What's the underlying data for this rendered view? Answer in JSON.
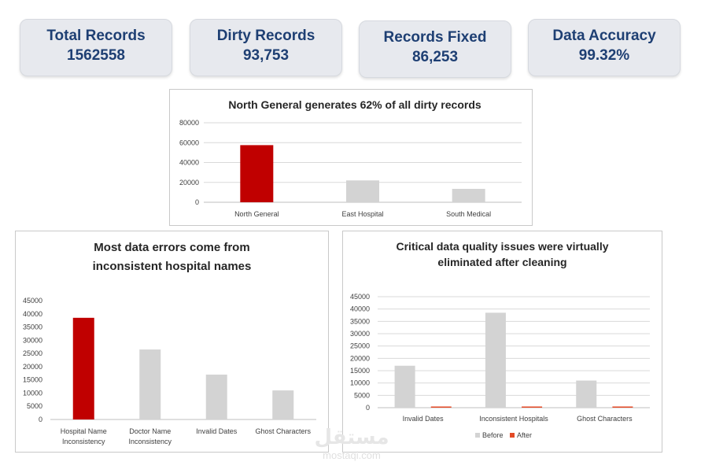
{
  "kpis": [
    {
      "title": "Total Records",
      "value": "1562558"
    },
    {
      "title": "Dirty Records",
      "value": "93,753"
    },
    {
      "title": "Records Fixed",
      "value": "86,253"
    },
    {
      "title": "Data Accuracy",
      "value": "99.32%"
    }
  ],
  "colors": {
    "highlight": "#c00000",
    "neutral": "#d3d3d3",
    "kpi_text": "#1e3f73",
    "gridline": "#d9d9d9"
  },
  "watermark": {
    "arabic": "مستقل",
    "latin": "mostaqi.com"
  },
  "chart_data": [
    {
      "type": "bar",
      "title": "North General generates 62% of all dirty records",
      "categories": [
        "North General",
        "East Hospital",
        "South Medical"
      ],
      "values": [
        57500,
        22000,
        13500
      ],
      "highlight_index": 0,
      "ylim": [
        0,
        80000
      ],
      "yticks": [
        0,
        20000,
        40000,
        60000,
        80000
      ],
      "grid": true,
      "legend": "none"
    },
    {
      "type": "bar",
      "title_lines": [
        "Most data errors come from",
        "inconsistent hospital names"
      ],
      "categories": [
        [
          "Hospital Name",
          "Inconsistency"
        ],
        [
          "Doctor Name",
          "Inconsistency"
        ],
        [
          "Invalid Dates"
        ],
        [
          "Ghost Characters"
        ]
      ],
      "values": [
        38500,
        26500,
        17000,
        11000
      ],
      "highlight_index": 0,
      "ylim": [
        0,
        45000
      ],
      "yticks": [
        0,
        5000,
        10000,
        15000,
        20000,
        25000,
        30000,
        35000,
        40000,
        45000
      ],
      "grid": false,
      "legend": "none"
    },
    {
      "type": "bar",
      "title_lines": [
        "Critical data quality issues were virtually",
        "eliminated after cleaning"
      ],
      "categories": [
        "Invalid Dates",
        "Inconsistent Hospitals",
        "Ghost Characters"
      ],
      "series": [
        {
          "name": "Before",
          "values": [
            17000,
            38500,
            11000
          ],
          "color": "#d3d3d3"
        },
        {
          "name": "After",
          "values": [
            300,
            300,
            300
          ],
          "color": "#e34a26"
        }
      ],
      "ylim": [
        0,
        45000
      ],
      "yticks": [
        0,
        5000,
        10000,
        15000,
        20000,
        25000,
        30000,
        35000,
        40000,
        45000
      ],
      "grid": true,
      "legend": "bottom"
    }
  ]
}
